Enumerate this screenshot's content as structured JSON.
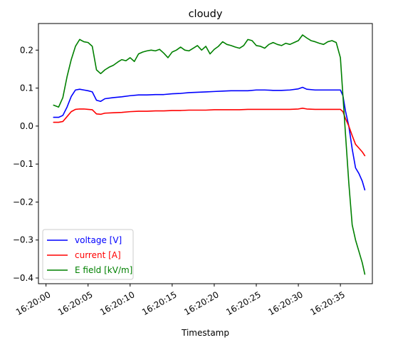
{
  "chart_data": {
    "type": "line",
    "title": "cloudy",
    "xlabel": "Timestamp",
    "ylabel": "",
    "xlim": [
      -0.9,
      38.8
    ],
    "ylim": [
      -0.415,
      0.27
    ],
    "x_ticks": [
      {
        "value": 0,
        "label": "16:20:00"
      },
      {
        "value": 5,
        "label": "16:20:05"
      },
      {
        "value": 10,
        "label": "16:20:10"
      },
      {
        "value": 15,
        "label": "16:20:15"
      },
      {
        "value": 20,
        "label": "16:20:20"
      },
      {
        "value": 25,
        "label": "16:20:25"
      },
      {
        "value": 30,
        "label": "16:20:30"
      },
      {
        "value": 35,
        "label": "16:20:35"
      }
    ],
    "y_ticks": [
      {
        "value": 0.2,
        "label": "0.2"
      },
      {
        "value": 0.1,
        "label": "0.1"
      },
      {
        "value": 0.0,
        "label": "0.0"
      },
      {
        "value": -0.1,
        "label": "−0.1"
      },
      {
        "value": -0.2,
        "label": "−0.2"
      },
      {
        "value": -0.3,
        "label": "−0.3"
      },
      {
        "value": -0.4,
        "label": "−0.4"
      }
    ],
    "grid": false,
    "legend_position": "lower-left",
    "series": [
      {
        "name": "voltage [V]",
        "color": "#0000ff",
        "x": [
          0.9,
          1.5,
          2.0,
          2.5,
          3.0,
          3.5,
          4.0,
          4.5,
          5.0,
          5.5,
          6.0,
          6.5,
          7.0,
          8.0,
          9.0,
          10.0,
          11.0,
          12.0,
          13.0,
          14.0,
          15.0,
          16.0,
          17.0,
          18.0,
          19.0,
          20.0,
          21.0,
          22.0,
          23.0,
          24.0,
          25.0,
          26.0,
          27.0,
          28.0,
          29.0,
          30.0,
          30.5,
          31.0,
          32.0,
          33.0,
          34.0,
          35.0,
          35.3,
          35.6,
          36.0,
          36.4,
          36.8,
          37.2,
          37.6,
          37.9
        ],
        "y": [
          0.023,
          0.023,
          0.028,
          0.05,
          0.078,
          0.095,
          0.097,
          0.095,
          0.093,
          0.09,
          0.068,
          0.065,
          0.072,
          0.075,
          0.077,
          0.08,
          0.082,
          0.082,
          0.083,
          0.083,
          0.085,
          0.086,
          0.088,
          0.089,
          0.09,
          0.091,
          0.092,
          0.093,
          0.093,
          0.093,
          0.095,
          0.095,
          0.094,
          0.094,
          0.095,
          0.098,
          0.102,
          0.097,
          0.095,
          0.095,
          0.095,
          0.095,
          0.08,
          0.04,
          0.0,
          -0.06,
          -0.11,
          -0.125,
          -0.145,
          -0.168
        ]
      },
      {
        "name": "current [A]",
        "color": "#ff0000",
        "x": [
          0.9,
          1.5,
          2.0,
          2.5,
          3.0,
          3.5,
          4.0,
          4.5,
          5.0,
          5.5,
          6.0,
          6.5,
          7.0,
          8.0,
          9.0,
          10.0,
          11.0,
          12.0,
          13.0,
          14.0,
          15.0,
          16.0,
          17.0,
          18.0,
          19.0,
          20.0,
          21.0,
          22.0,
          23.0,
          24.0,
          25.0,
          26.0,
          27.0,
          28.0,
          29.0,
          30.0,
          30.5,
          31.0,
          32.0,
          33.0,
          34.0,
          35.0,
          35.3,
          35.6,
          36.0,
          36.4,
          36.8,
          37.2,
          37.6,
          37.9
        ],
        "y": [
          0.01,
          0.01,
          0.012,
          0.025,
          0.038,
          0.044,
          0.045,
          0.045,
          0.044,
          0.043,
          0.032,
          0.031,
          0.034,
          0.035,
          0.036,
          0.038,
          0.039,
          0.039,
          0.04,
          0.04,
          0.041,
          0.041,
          0.042,
          0.042,
          0.042,
          0.043,
          0.043,
          0.043,
          0.043,
          0.044,
          0.044,
          0.044,
          0.044,
          0.044,
          0.044,
          0.045,
          0.047,
          0.045,
          0.044,
          0.044,
          0.044,
          0.044,
          0.038,
          0.02,
          0.0,
          -0.025,
          -0.048,
          -0.058,
          -0.068,
          -0.078
        ]
      },
      {
        "name": "E field [kV/m]",
        "color": "#008000",
        "x": [
          0.9,
          1.5,
          2.0,
          2.5,
          3.0,
          3.5,
          4.0,
          4.5,
          5.0,
          5.5,
          6.0,
          6.5,
          7.0,
          7.5,
          8.0,
          8.5,
          9.0,
          9.5,
          10.0,
          10.5,
          11.0,
          11.5,
          12.0,
          12.5,
          13.0,
          13.5,
          14.0,
          14.5,
          15.0,
          15.5,
          16.0,
          16.5,
          17.0,
          17.5,
          18.0,
          18.5,
          19.0,
          19.5,
          20.0,
          20.5,
          21.0,
          21.5,
          22.0,
          22.5,
          23.0,
          23.5,
          24.0,
          24.5,
          25.0,
          25.5,
          26.0,
          26.5,
          27.0,
          27.5,
          28.0,
          28.5,
          29.0,
          29.5,
          30.0,
          30.5,
          31.0,
          31.5,
          32.0,
          32.5,
          33.0,
          33.5,
          34.0,
          34.5,
          35.0,
          35.3,
          35.6,
          36.0,
          36.4,
          36.8,
          37.2,
          37.6,
          37.9
        ],
        "y": [
          0.055,
          0.05,
          0.075,
          0.13,
          0.175,
          0.21,
          0.228,
          0.222,
          0.22,
          0.21,
          0.148,
          0.138,
          0.148,
          0.155,
          0.16,
          0.168,
          0.175,
          0.172,
          0.18,
          0.17,
          0.19,
          0.195,
          0.198,
          0.2,
          0.198,
          0.202,
          0.192,
          0.18,
          0.195,
          0.2,
          0.208,
          0.2,
          0.198,
          0.205,
          0.212,
          0.2,
          0.21,
          0.19,
          0.202,
          0.21,
          0.222,
          0.215,
          0.212,
          0.208,
          0.205,
          0.212,
          0.228,
          0.225,
          0.212,
          0.21,
          0.205,
          0.215,
          0.22,
          0.215,
          0.212,
          0.218,
          0.215,
          0.22,
          0.225,
          0.24,
          0.232,
          0.225,
          0.222,
          0.218,
          0.215,
          0.222,
          0.225,
          0.22,
          0.18,
          0.08,
          -0.02,
          -0.15,
          -0.26,
          -0.3,
          -0.33,
          -0.36,
          -0.39
        ]
      }
    ]
  }
}
